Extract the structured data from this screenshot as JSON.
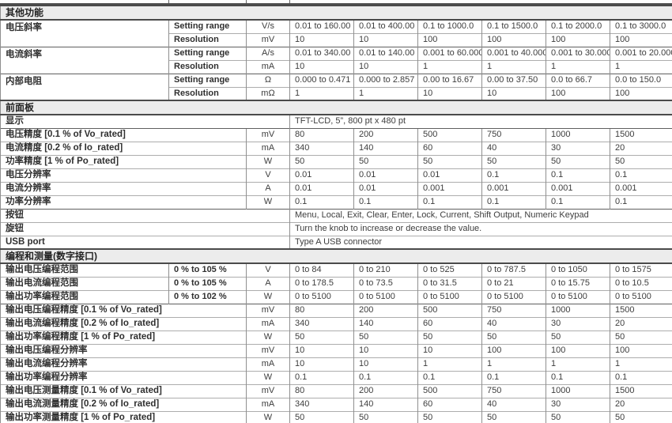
{
  "document": {
    "type": "specification-table",
    "model_column_count": 6
  },
  "sections": [
    {
      "title": "其他功能",
      "rows": [
        {
          "group": "电压斜率",
          "rows": [
            {
              "sub": "Setting range",
              "unit": "V/s",
              "values": [
                "0.01 to 160.00",
                "0.01 to 400.00",
                "0.1 to 1000.0",
                "0.1 to 1500.0",
                "0.1 to 2000.0",
                "0.1 to 3000.0"
              ]
            },
            {
              "sub": "Resolution",
              "unit": "mV",
              "values": [
                "10",
                "10",
                "100",
                "100",
                "100",
                "100"
              ]
            }
          ]
        },
        {
          "group": "电流斜率",
          "rows": [
            {
              "sub": "Setting range",
              "unit": "A/s",
              "values": [
                "0.01 to 340.00",
                "0.01 to 140.00",
                "0.001 to 60.000",
                "0.001 to 40.000",
                "0.001 to 30.000",
                "0.001 to 20.000"
              ]
            },
            {
              "sub": "Resolution",
              "unit": "mA",
              "values": [
                "10",
                "10",
                "1",
                "1",
                "1",
                "1"
              ]
            }
          ]
        },
        {
          "group": "内部电阻",
          "rows": [
            {
              "sub": "Setting range",
              "unit": "Ω",
              "values": [
                "0.000 to 0.471",
                "0.000 to 2.857",
                "0.00 to 16.67",
                "0.00 to 37.50",
                "0.0 to 66.7",
                "0.0 to 150.0"
              ]
            },
            {
              "sub": "Resolution",
              "unit": "mΩ",
              "values": [
                "1",
                "1",
                "10",
                "10",
                "100",
                "100"
              ]
            }
          ]
        }
      ]
    },
    {
      "title": "前面板",
      "rows": [
        {
          "label": "显示",
          "value": "TFT-LCD, 5”, 800 pt x 480 pt"
        },
        {
          "label": "电压精度 [0.1 % of Vo_rated]",
          "unit": "mV",
          "values": [
            "80",
            "200",
            "500",
            "750",
            "1000",
            "1500"
          ]
        },
        {
          "label": "电流精度 [0.2 % of Io_rated]",
          "unit": "mA",
          "values": [
            "340",
            "140",
            "60",
            "40",
            "30",
            "20"
          ]
        },
        {
          "label": "功率精度 [1 % of Po_rated]",
          "unit": "W",
          "values": [
            "50",
            "50",
            "50",
            "50",
            "50",
            "50"
          ]
        },
        {
          "label": "电压分辨率",
          "unit": "V",
          "values": [
            "0.01",
            "0.01",
            "0.01",
            "0.1",
            "0.1",
            "0.1"
          ]
        },
        {
          "label": "电流分辨率",
          "unit": "A",
          "values": [
            "0.01",
            "0.01",
            "0.001",
            "0.001",
            "0.001",
            "0.001"
          ]
        },
        {
          "label": "功率分辨率",
          "unit": "W",
          "values": [
            "0.1",
            "0.1",
            "0.1",
            "0.1",
            "0.1",
            "0.1"
          ]
        },
        {
          "label": "按钮",
          "value": "Menu, Local, Exit, Clear, Enter, Lock, Current, Shift Output, Numeric Keypad"
        },
        {
          "label": "旋钮",
          "value": "Turn the knob to increase or decrease the value."
        },
        {
          "label": "USB port",
          "value": "Type A USB connector"
        }
      ]
    },
    {
      "title": "编程和测量(数字接口)",
      "rows": [
        {
          "label": "输出电压编程范围",
          "percent": "0 % to 105 %",
          "unit": "V",
          "values": [
            "0 to 84",
            "0 to 210",
            "0 to 525",
            "0 to 787.5",
            "0 to 1050",
            "0 to 1575"
          ]
        },
        {
          "label": "输出电流编程范围",
          "percent": "0 % to 105 %",
          "unit": "A",
          "values": [
            "0 to 178.5",
            "0 to 73.5",
            "0 to 31.5",
            "0 to 21",
            "0 to 15.75",
            "0 to 10.5"
          ]
        },
        {
          "label": "输出功率编程范围",
          "percent": "0 % to 102 %",
          "unit": "W",
          "values": [
            "0 to 5100",
            "0 to 5100",
            "0 to 5100",
            "0 to 5100",
            "0 to 5100",
            "0 to 5100"
          ]
        },
        {
          "label": "输出电压编程精度 [0.1 % of Vo_rated]",
          "unit": "mV",
          "values": [
            "80",
            "200",
            "500",
            "750",
            "1000",
            "1500"
          ]
        },
        {
          "label": "输出电流编程精度 [0.2 % of Io_rated]",
          "unit": "mA",
          "values": [
            "340",
            "140",
            "60",
            "40",
            "30",
            "20"
          ]
        },
        {
          "label": "输出功率编程精度 [1 % of Po_rated]",
          "unit": "W",
          "values": [
            "50",
            "50",
            "50",
            "50",
            "50",
            "50"
          ]
        },
        {
          "label": "输出电压编程分辨率",
          "unit": "mV",
          "values": [
            "10",
            "10",
            "10",
            "100",
            "100",
            "100"
          ]
        },
        {
          "label": "输出电流编程分辨率",
          "unit": "mA",
          "values": [
            "10",
            "10",
            "1",
            "1",
            "1",
            "1"
          ]
        },
        {
          "label": "输出功率编程分辨率",
          "unit": "W",
          "values": [
            "0.1",
            "0.1",
            "0.1",
            "0.1",
            "0.1",
            "0.1"
          ]
        },
        {
          "label": "输出电压测量精度 [0.1 % of Vo_rated]",
          "unit": "mV",
          "values": [
            "80",
            "200",
            "500",
            "750",
            "1000",
            "1500"
          ]
        },
        {
          "label": "输出电流测量精度 [0.2 % of Io_rated]",
          "unit": "mA",
          "values": [
            "340",
            "140",
            "60",
            "40",
            "30",
            "20"
          ]
        },
        {
          "label": "输出功率测量精度 [1 % of Po_rated]",
          "unit": "W",
          "values": [
            "50",
            "50",
            "50",
            "50",
            "50",
            "50"
          ]
        }
      ]
    }
  ],
  "colors": {
    "section_header_bg": "#ececec",
    "border_dark": "#4a4a4a",
    "border_medium": "#5f5f5f",
    "border_light": "#adadad",
    "text": "#3d3d3d"
  }
}
